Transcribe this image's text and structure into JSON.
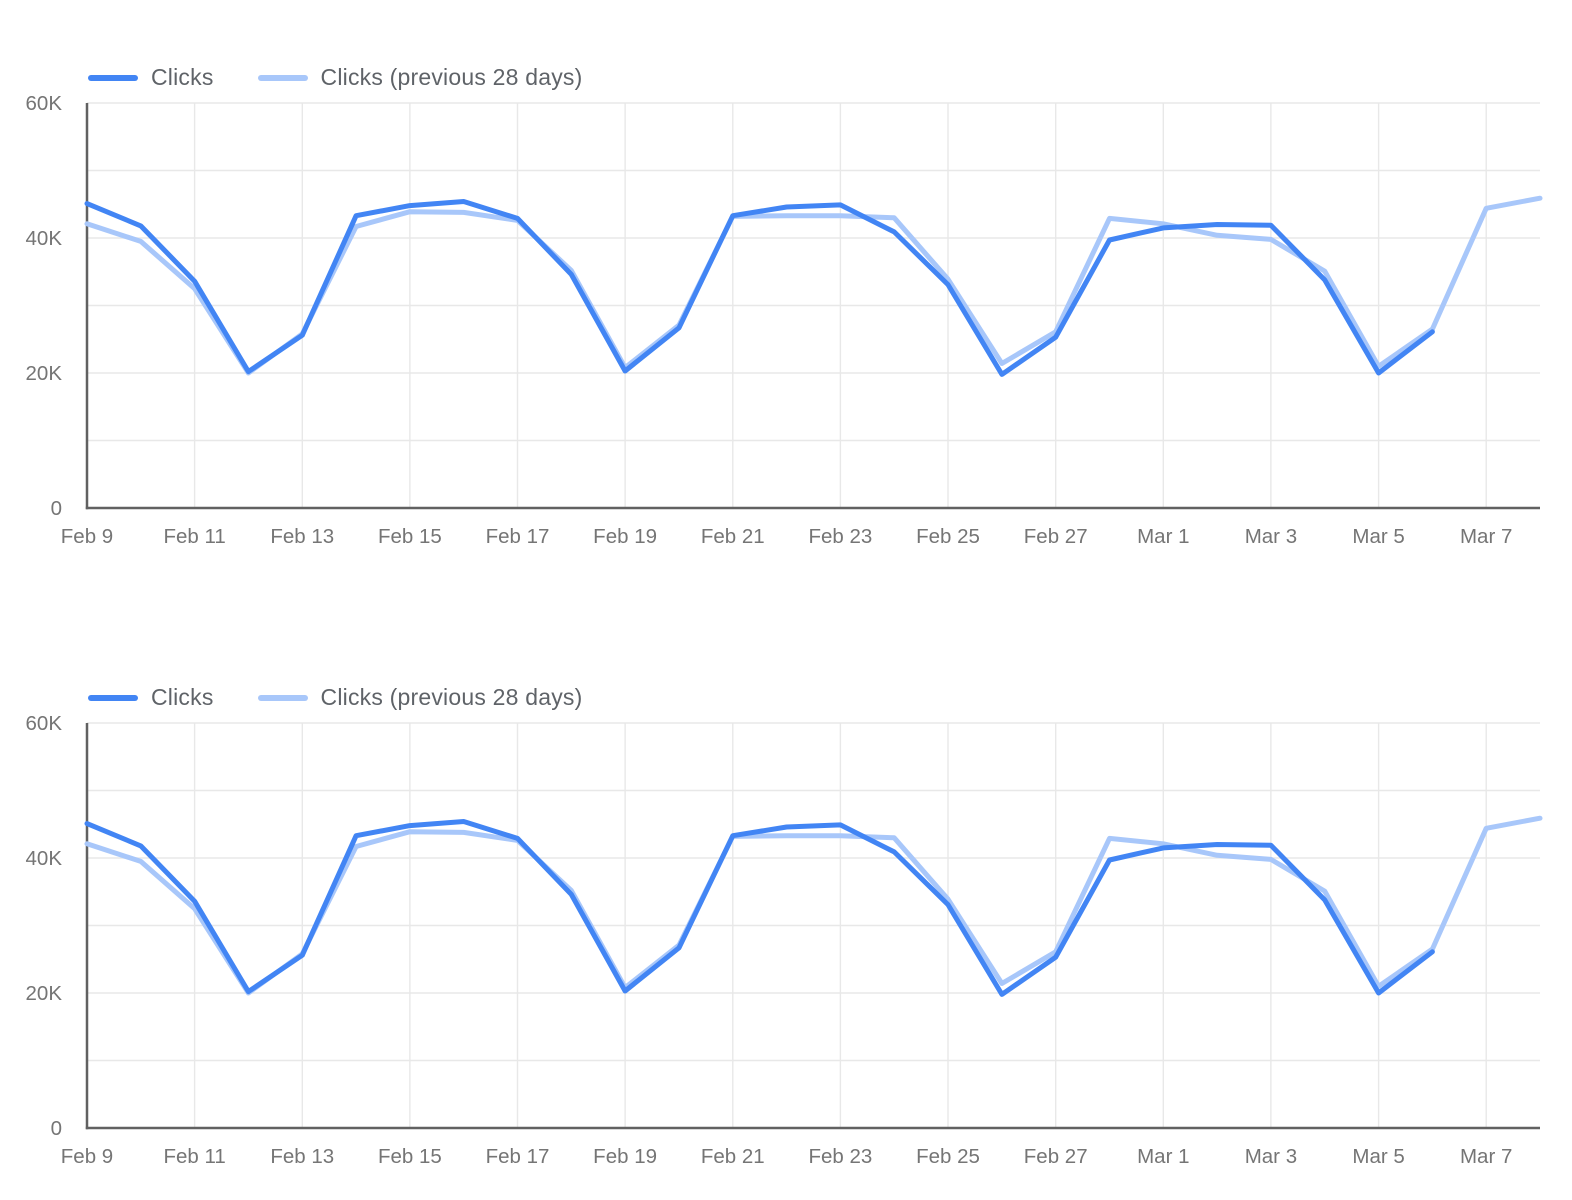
{
  "styles": {
    "background": "#ffffff",
    "axis_color": "#616161",
    "grid_color": "#e8e8e8",
    "tick_color": "#757575",
    "legend_text_color": "#5f6368",
    "series_current_color": "#4285F4",
    "series_previous_color": "#A8C7FA"
  },
  "chart_data": [
    {
      "type": "line",
      "title": "",
      "xlabel": "",
      "ylabel": "",
      "grid": true,
      "legend_position": "top-left",
      "ylim": [
        0,
        60000
      ],
      "yticks": [
        {
          "value": 0,
          "label": "0"
        },
        {
          "value": 20000,
          "label": "20K"
        },
        {
          "value": 40000,
          "label": "40K"
        },
        {
          "value": 60000,
          "label": "60K"
        }
      ],
      "categories": [
        "Feb 9",
        "Feb 10",
        "Feb 11",
        "Feb 12",
        "Feb 13",
        "Feb 14",
        "Feb 15",
        "Feb 16",
        "Feb 17",
        "Feb 18",
        "Feb 19",
        "Feb 20",
        "Feb 21",
        "Feb 22",
        "Feb 23",
        "Feb 24",
        "Feb 25",
        "Feb 26",
        "Feb 27",
        "Feb 28",
        "Mar 1",
        "Mar 2",
        "Mar 3",
        "Mar 4",
        "Mar 5",
        "Mar 6",
        "Mar 7",
        "Mar 8"
      ],
      "xtick_labels": [
        "Feb 9",
        "Feb 11",
        "Feb 13",
        "Feb 15",
        "Feb 17",
        "Feb 19",
        "Feb 21",
        "Feb 23",
        "Feb 25",
        "Feb 27",
        "Mar 1",
        "Mar 3",
        "Mar 5",
        "Mar 7"
      ],
      "series": [
        {
          "name": "Clicks",
          "color": "#4285F4",
          "values": [
            45100,
            41800,
            33600,
            20200,
            25600,
            43300,
            44800,
            45400,
            42900,
            34600,
            20300,
            26700,
            43300,
            44600,
            44900,
            40900,
            33100,
            19800,
            25300,
            39700,
            41500,
            42000,
            41900,
            33800,
            20000,
            26100,
            null,
            null
          ]
        },
        {
          "name": "Clicks (previous 28 days)",
          "color": "#A8C7FA",
          "values": [
            42100,
            39500,
            32500,
            20000,
            25800,
            41700,
            43900,
            43800,
            42600,
            35200,
            20800,
            27100,
            43200,
            43300,
            43300,
            43000,
            33900,
            21400,
            26100,
            42900,
            42100,
            40400,
            39800,
            35100,
            21000,
            26500,
            44400,
            45900
          ]
        }
      ]
    },
    {
      "type": "line",
      "title": "",
      "xlabel": "",
      "ylabel": "",
      "grid": true,
      "legend_position": "top-left",
      "ylim": [
        0,
        60000
      ],
      "yticks": [
        {
          "value": 0,
          "label": "0"
        },
        {
          "value": 20000,
          "label": "20K"
        },
        {
          "value": 40000,
          "label": "40K"
        },
        {
          "value": 60000,
          "label": "60K"
        }
      ],
      "categories": [
        "Feb 9",
        "Feb 10",
        "Feb 11",
        "Feb 12",
        "Feb 13",
        "Feb 14",
        "Feb 15",
        "Feb 16",
        "Feb 17",
        "Feb 18",
        "Feb 19",
        "Feb 20",
        "Feb 21",
        "Feb 22",
        "Feb 23",
        "Feb 24",
        "Feb 25",
        "Feb 26",
        "Feb 27",
        "Feb 28",
        "Mar 1",
        "Mar 2",
        "Mar 3",
        "Mar 4",
        "Mar 5",
        "Mar 6",
        "Mar 7",
        "Mar 8"
      ],
      "xtick_labels": [
        "Feb 9",
        "Feb 11",
        "Feb 13",
        "Feb 15",
        "Feb 17",
        "Feb 19",
        "Feb 21",
        "Feb 23",
        "Feb 25",
        "Feb 27",
        "Mar 1",
        "Mar 3",
        "Mar 5",
        "Mar 7"
      ],
      "series": [
        {
          "name": "Clicks",
          "color": "#4285F4",
          "values": [
            45100,
            41800,
            33600,
            20200,
            25600,
            43300,
            44800,
            45400,
            42900,
            34600,
            20300,
            26700,
            43300,
            44600,
            44900,
            40900,
            33100,
            19800,
            25300,
            39700,
            41500,
            42000,
            41900,
            33800,
            20000,
            26100,
            null,
            null
          ]
        },
        {
          "name": "Clicks (previous 28 days)",
          "color": "#A8C7FA",
          "values": [
            42100,
            39500,
            32500,
            20000,
            25800,
            41700,
            43900,
            43800,
            42600,
            35200,
            20800,
            27100,
            43200,
            43300,
            43300,
            43000,
            33900,
            21400,
            26100,
            42900,
            42100,
            40400,
            39800,
            35100,
            21000,
            26500,
            44400,
            45900
          ]
        }
      ]
    }
  ]
}
